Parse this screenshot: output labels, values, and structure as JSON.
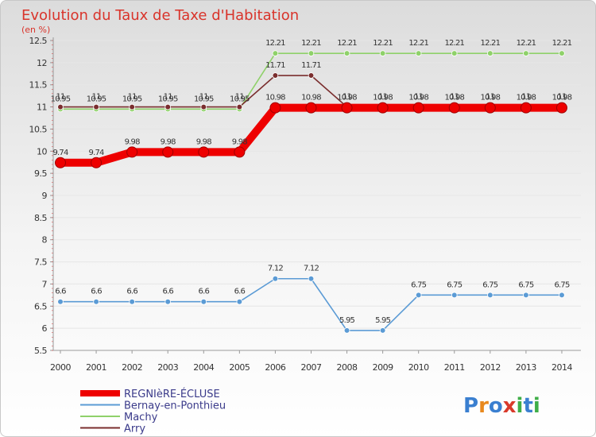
{
  "header": {
    "title": "Evolution du Taux de Taxe d'Habitation",
    "subtitle": "(en %)"
  },
  "logo": {
    "letters": [
      "P",
      "r",
      "o",
      "x",
      "i",
      "t",
      "i"
    ],
    "colors": [
      "#3a7fd0",
      "#e8891e",
      "#3a7fd0",
      "#d93a2b",
      "#3fae48",
      "#3a7fd0",
      "#3fae48"
    ]
  },
  "chart_data": {
    "type": "line",
    "title": "Evolution du Taux de Taxe d'Habitation",
    "ylabel": "(en %)",
    "xlabel": "",
    "x": [
      "2000",
      "2001",
      "2002",
      "2003",
      "2004",
      "2005",
      "2006",
      "2007",
      "2008",
      "2009",
      "2010",
      "2011",
      "2012",
      "2013",
      "2014"
    ],
    "ylim": [
      5.5,
      12.5
    ],
    "yticks": [
      "5.5",
      "6",
      "6.5",
      "7",
      "7.5",
      "8",
      "8.5",
      "9",
      "9.5",
      "10",
      "10.5",
      "11",
      "11.5",
      "12",
      "12.5"
    ],
    "series": [
      {
        "name": "REGNIèRE-ÉCLUSE",
        "color": "#ee0000",
        "values": [
          9.74,
          9.74,
          9.98,
          9.98,
          9.98,
          9.98,
          10.98,
          10.98,
          10.98,
          10.98,
          10.98,
          10.98,
          10.98,
          10.98,
          10.98
        ],
        "labels": [
          "9.74",
          "9.74",
          "9.98",
          "9.98",
          "9.98",
          "9.98",
          "10.98",
          "10.98",
          "10.98",
          "10.98",
          "10.98",
          "10.98",
          "10.98",
          "10.98",
          "10.98"
        ]
      },
      {
        "name": "Bernay-en-Ponthieu",
        "color": "#5b9bd5",
        "values": [
          6.6,
          6.6,
          6.6,
          6.6,
          6.6,
          6.6,
          7.12,
          7.12,
          5.95,
          5.95,
          6.75,
          6.75,
          6.75,
          6.75,
          6.75
        ],
        "labels": [
          "6.6",
          "6.6",
          "6.6",
          "6.6",
          "6.6",
          "6.6",
          "7.12",
          "7.12",
          "5.95",
          "5.95",
          "6.75",
          "6.75",
          "6.75",
          "6.75",
          "6.75"
        ]
      },
      {
        "name": "Machy",
        "color": "#8fd16a",
        "values": [
          10.95,
          10.95,
          10.95,
          10.95,
          10.95,
          10.95,
          12.21,
          12.21,
          12.21,
          12.21,
          12.21,
          12.21,
          12.21,
          12.21,
          12.21
        ],
        "labels": [
          "10.95",
          "10.95",
          "10.95",
          "10.95",
          "10.95",
          "10.95",
          "12.21",
          "12.21",
          "12.21",
          "12.21",
          "12.21",
          "12.21",
          "12.21",
          "12.21",
          "12.21"
        ]
      },
      {
        "name": "Arry",
        "color": "#7a2e2e",
        "values": [
          11,
          11,
          11,
          11,
          11,
          11,
          11.71,
          11.71,
          11,
          11,
          11,
          11,
          11,
          11,
          11
        ],
        "labels": [
          "11",
          "11",
          "11",
          "11",
          "11",
          "11",
          "11.71",
          "11.71",
          "11",
          "11",
          "11",
          "11",
          "11",
          "11",
          "11"
        ]
      }
    ]
  }
}
